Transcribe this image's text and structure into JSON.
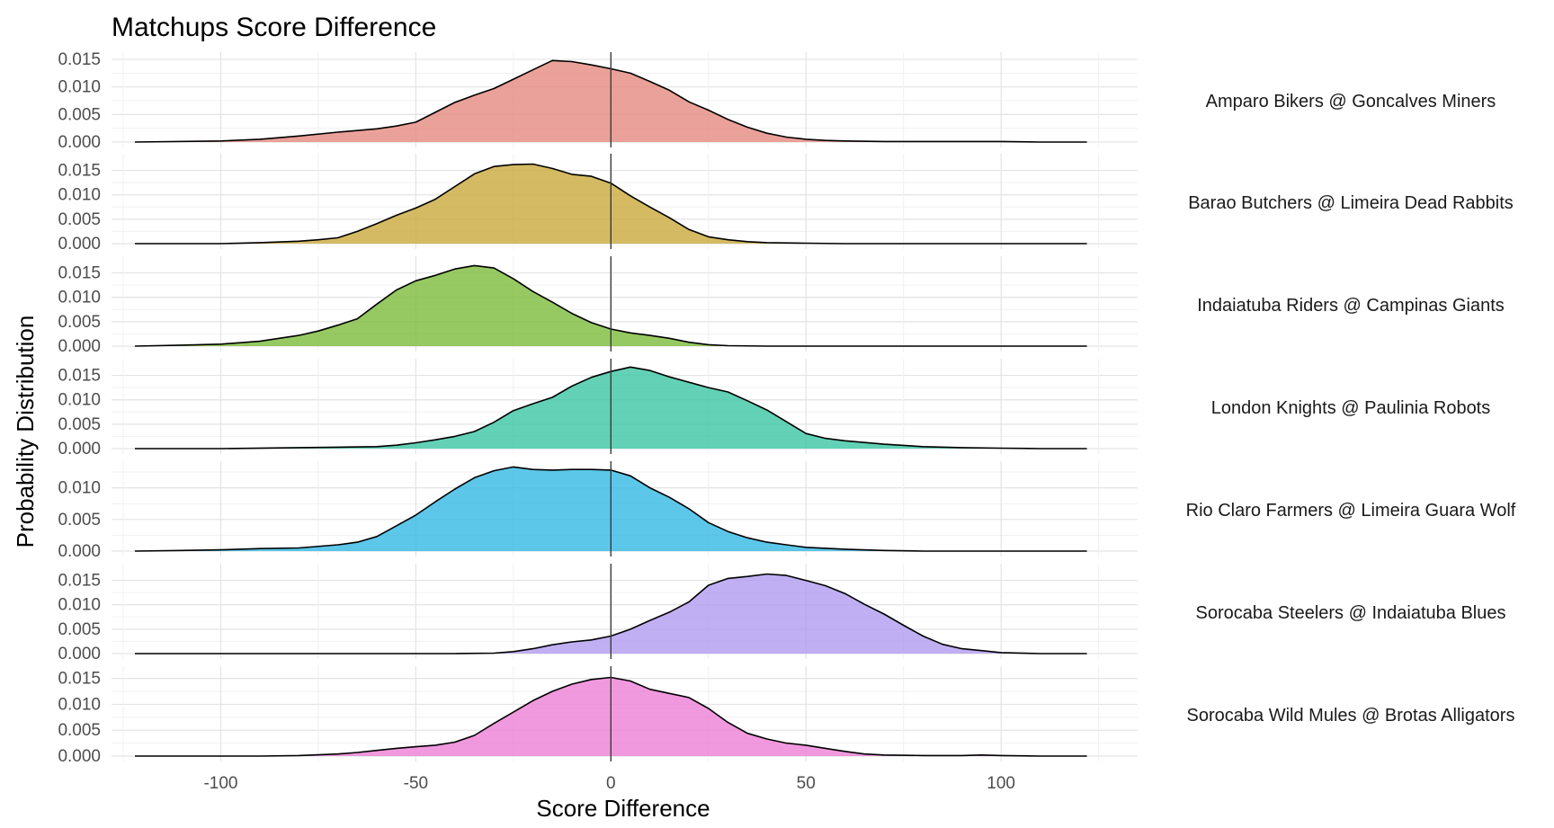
{
  "chart_data": {
    "type": "area",
    "title": "Matchups Score Difference",
    "xlabel": "Score Difference",
    "ylabel": "Probability Distribution",
    "xlim": [
      -128,
      135
    ],
    "x_ticks": [
      -100,
      -50,
      0,
      50,
      100
    ],
    "x_tick_labels": [
      "-100",
      "-50",
      "0",
      "50",
      "100"
    ],
    "reference_line_x": 0,
    "grid": true,
    "panels": [
      {
        "name": "Amparo Bikers @ Goncalves Miners",
        "color": "#E58A80",
        "ylim": [
          0,
          0.0155
        ],
        "y_ticks": [
          0,
          0.005,
          0.01,
          0.015
        ],
        "y_tick_labels": [
          "0.000",
          "0.005",
          "0.010",
          "0.015"
        ],
        "x": [
          -122,
          -100,
          -90,
          -80,
          -70,
          -60,
          -55,
          -50,
          -45,
          -40,
          -35,
          -30,
          -25,
          -20,
          -15,
          -10,
          -5,
          0,
          5,
          10,
          15,
          20,
          25,
          30,
          35,
          40,
          45,
          50,
          55,
          60,
          70,
          80,
          90,
          100,
          110,
          122
        ],
        "y": [
          0,
          0.0002,
          0.0005,
          0.0011,
          0.0018,
          0.0024,
          0.0029,
          0.0036,
          0.0054,
          0.0072,
          0.0085,
          0.0097,
          0.0114,
          0.0131,
          0.0148,
          0.0146,
          0.014,
          0.0133,
          0.0125,
          0.011,
          0.0094,
          0.0073,
          0.0058,
          0.0041,
          0.0027,
          0.0016,
          0.0009,
          0.0005,
          0.0003,
          0.0002,
          0.0001,
          0.0001,
          0.0001,
          0.0001,
          0,
          0
        ]
      },
      {
        "name": "Barao Butchers @ Limeira Dead Rabbits",
        "color": "#C9A93C",
        "ylim": [
          0,
          0.0175
        ],
        "y_ticks": [
          0,
          0.005,
          0.01,
          0.015
        ],
        "y_tick_labels": [
          "0.000",
          "0.005",
          "0.010",
          "0.015"
        ],
        "x": [
          -122,
          -100,
          -90,
          -80,
          -75,
          -70,
          -65,
          -60,
          -55,
          -50,
          -45,
          -40,
          -35,
          -30,
          -25,
          -20,
          -15,
          -10,
          -5,
          0,
          5,
          10,
          15,
          20,
          25,
          30,
          35,
          40,
          50,
          60,
          80,
          100,
          122
        ],
        "y": [
          0,
          0,
          0.0002,
          0.0005,
          0.0008,
          0.0012,
          0.0025,
          0.0041,
          0.0058,
          0.0073,
          0.0091,
          0.0117,
          0.0143,
          0.0158,
          0.0162,
          0.0163,
          0.0154,
          0.0142,
          0.0138,
          0.0124,
          0.0098,
          0.0075,
          0.0053,
          0.0029,
          0.0014,
          0.0008,
          0.0004,
          0.0002,
          0.0001,
          0,
          0,
          0,
          0
        ]
      },
      {
        "name": "Indaiatuba Riders @ Campinas Giants",
        "color": "#7CBB3B",
        "ylim": [
          0,
          0.0175
        ],
        "y_ticks": [
          0,
          0.005,
          0.01,
          0.015
        ],
        "y_tick_labels": [
          "0.000",
          "0.005",
          "0.010",
          "0.015"
        ],
        "x": [
          -122,
          -110,
          -100,
          -90,
          -80,
          -75,
          -70,
          -65,
          -60,
          -55,
          -50,
          -45,
          -40,
          -35,
          -30,
          -25,
          -20,
          -15,
          -10,
          -5,
          0,
          5,
          10,
          15,
          20,
          25,
          30,
          40,
          60,
          80,
          100,
          122
        ],
        "y": [
          0,
          0.0002,
          0.0004,
          0.001,
          0.0022,
          0.0031,
          0.0043,
          0.0056,
          0.0086,
          0.0115,
          0.0134,
          0.0145,
          0.0158,
          0.0165,
          0.016,
          0.0138,
          0.0112,
          0.009,
          0.0067,
          0.0048,
          0.0035,
          0.0027,
          0.0022,
          0.0016,
          0.0008,
          0.0003,
          0.0001,
          0,
          0,
          0,
          0,
          0
        ]
      },
      {
        "name": "London Knights @ Paulinia Robots",
        "color": "#3CC5A2",
        "ylim": [
          0,
          0.0175
        ],
        "y_ticks": [
          0,
          0.005,
          0.01,
          0.015
        ],
        "y_tick_labels": [
          "0.000",
          "0.005",
          "0.010",
          "0.015"
        ],
        "x": [
          -122,
          -100,
          -80,
          -70,
          -60,
          -55,
          -50,
          -45,
          -40,
          -35,
          -30,
          -25,
          -20,
          -15,
          -10,
          -5,
          0,
          5,
          10,
          15,
          20,
          25,
          30,
          35,
          40,
          45,
          50,
          55,
          60,
          70,
          80,
          90,
          100,
          110,
          122
        ],
        "y": [
          0,
          0,
          0.0002,
          0.0003,
          0.0004,
          0.0007,
          0.0012,
          0.0018,
          0.0025,
          0.0035,
          0.0054,
          0.0078,
          0.0092,
          0.0105,
          0.0128,
          0.0146,
          0.0158,
          0.0167,
          0.016,
          0.0147,
          0.0136,
          0.0125,
          0.0116,
          0.0098,
          0.0079,
          0.0055,
          0.0031,
          0.0021,
          0.0016,
          0.0009,
          0.0004,
          0.0002,
          0.0001,
          0,
          0
        ]
      },
      {
        "name": "Rio Claro Farmers @ Limeira Guara Wolf",
        "color": "#35B9E3",
        "ylim": [
          0,
          0.0135
        ],
        "y_ticks": [
          0,
          0.005,
          0.01
        ],
        "y_tick_labels": [
          "0.000",
          "0.005",
          "0.010"
        ],
        "x": [
          -122,
          -110,
          -100,
          -90,
          -80,
          -70,
          -65,
          -60,
          -55,
          -50,
          -45,
          -40,
          -35,
          -30,
          -25,
          -20,
          -15,
          -10,
          -5,
          0,
          5,
          10,
          15,
          20,
          25,
          30,
          35,
          40,
          45,
          50,
          60,
          70,
          80,
          90,
          100,
          110,
          122
        ],
        "y": [
          0,
          0.0001,
          0.0002,
          0.0004,
          0.0005,
          0.001,
          0.0014,
          0.0023,
          0.004,
          0.0057,
          0.0078,
          0.0098,
          0.0116,
          0.0127,
          0.0133,
          0.0129,
          0.0128,
          0.0129,
          0.0129,
          0.0128,
          0.0119,
          0.01,
          0.0085,
          0.0067,
          0.0045,
          0.0031,
          0.0021,
          0.0014,
          0.001,
          0.0006,
          0.0003,
          0.0001,
          0,
          0,
          0,
          0,
          0
        ]
      },
      {
        "name": "Sorocaba Steelers @ Indaiatuba Blues",
        "color": "#B09BF0",
        "ylim": [
          0,
          0.0175
        ],
        "y_ticks": [
          0,
          0.005,
          0.01,
          0.015
        ],
        "y_tick_labels": [
          "0.000",
          "0.005",
          "0.010",
          "0.015"
        ],
        "x": [
          -122,
          -100,
          -80,
          -60,
          -40,
          -30,
          -25,
          -20,
          -15,
          -10,
          -5,
          0,
          5,
          10,
          15,
          20,
          25,
          30,
          35,
          40,
          45,
          50,
          55,
          60,
          65,
          70,
          75,
          80,
          85,
          90,
          95,
          100,
          110,
          122
        ],
        "y": [
          0,
          0,
          0,
          0,
          0,
          0.0001,
          0.0004,
          0.001,
          0.0018,
          0.0024,
          0.0028,
          0.0036,
          0.005,
          0.0068,
          0.0085,
          0.0106,
          0.014,
          0.0154,
          0.0158,
          0.0163,
          0.016,
          0.015,
          0.0139,
          0.0123,
          0.0101,
          0.0081,
          0.0058,
          0.0036,
          0.0019,
          0.001,
          0.0006,
          0.0002,
          0,
          0
        ]
      },
      {
        "name": "Sorocaba Wild Mules @ Brotas Alligators",
        "color": "#EC7FD6",
        "ylim": [
          0,
          0.0165
        ],
        "y_ticks": [
          0,
          0.005,
          0.01,
          0.015
        ],
        "y_tick_labels": [
          "0.000",
          "0.005",
          "0.010",
          "0.015"
        ],
        "x": [
          -122,
          -100,
          -90,
          -80,
          -70,
          -65,
          -60,
          -55,
          -50,
          -45,
          -40,
          -35,
          -30,
          -25,
          -20,
          -15,
          -10,
          -5,
          0,
          5,
          10,
          15,
          20,
          25,
          30,
          35,
          40,
          45,
          50,
          55,
          60,
          65,
          70,
          80,
          90,
          95,
          100,
          110,
          122
        ],
        "y": [
          0,
          0,
          0,
          0.0001,
          0.0004,
          0.0007,
          0.0011,
          0.0015,
          0.0018,
          0.0021,
          0.0027,
          0.004,
          0.0063,
          0.0085,
          0.0107,
          0.0125,
          0.0139,
          0.0148,
          0.0152,
          0.0145,
          0.0129,
          0.0121,
          0.0113,
          0.0092,
          0.0065,
          0.0044,
          0.0033,
          0.0025,
          0.0021,
          0.0015,
          0.0009,
          0.0004,
          0.0002,
          0.0001,
          0.0001,
          0.0002,
          0.0001,
          0,
          0
        ]
      }
    ]
  }
}
